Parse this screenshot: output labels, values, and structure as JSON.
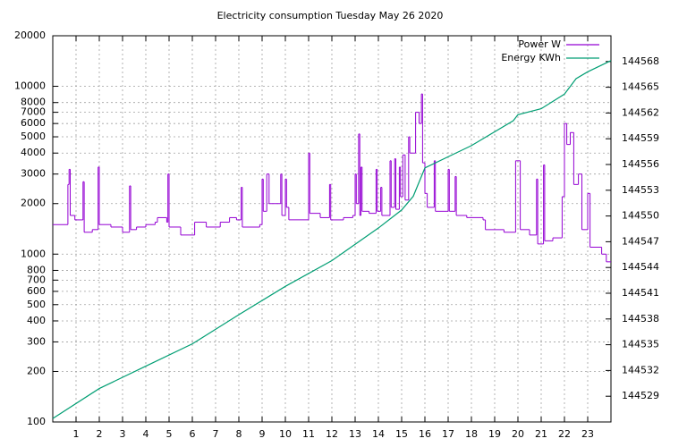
{
  "chart_data": {
    "type": "line",
    "title": "Electricity consumption Tuesday May 26 2020",
    "xlim": [
      0,
      24
    ],
    "xticks": [
      1,
      2,
      3,
      4,
      5,
      6,
      7,
      8,
      9,
      10,
      11,
      12,
      13,
      14,
      15,
      16,
      17,
      18,
      19,
      20,
      21,
      22,
      23
    ],
    "yscale": "log",
    "ylim": [
      100,
      20000
    ],
    "yticks": [
      100,
      200,
      300,
      400,
      500,
      600,
      700,
      800,
      1000,
      2000,
      3000,
      4000,
      5000,
      6000,
      7000,
      8000,
      10000,
      20000
    ],
    "y2lim": [
      144526,
      144571
    ],
    "y2ticks": [
      144529,
      144532,
      144535,
      144538,
      144541,
      144544,
      144547,
      144550,
      144553,
      144556,
      144559,
      144562,
      144565,
      144568
    ],
    "grid": true,
    "legend": "top-right",
    "series": [
      {
        "name": "Power W",
        "color": "#9400d3",
        "step": true,
        "x": [
          0,
          0.65,
          0.7,
          0.75,
          0.95,
          1.3,
          1.35,
          1.7,
          1.95,
          2.0,
          2.5,
          3.0,
          3.3,
          3.35,
          3.6,
          4.0,
          4.4,
          4.5,
          4.9,
          4.95,
          5.0,
          5.5,
          6.1,
          6.6,
          7.2,
          7.6,
          7.9,
          8.1,
          8.15,
          8.9,
          9.0,
          9.05,
          9.2,
          9.3,
          9.8,
          9.85,
          10.0,
          10.05,
          10.15,
          11.0,
          11.05,
          11.5,
          11.9,
          11.95,
          12.5,
          12.9,
          13.0,
          13.05,
          13.15,
          13.2,
          13.25,
          13.3,
          13.6,
          13.9,
          13.95,
          14.1,
          14.15,
          14.5,
          14.55,
          14.7,
          14.75,
          14.9,
          14.95,
          15.05,
          15.15,
          15.3,
          15.35,
          15.6,
          15.75,
          15.85,
          15.9,
          16.0,
          16.1,
          16.4,
          16.45,
          17.0,
          17.05,
          17.3,
          17.35,
          17.8,
          18.5,
          18.6,
          19.4,
          19.9,
          20.1,
          20.5,
          20.8,
          20.85,
          21.1,
          21.15,
          21.5,
          21.9,
          22.0,
          22.1,
          22.25,
          22.4,
          22.6,
          22.75,
          23.0,
          23.1,
          23.6,
          23.8,
          24
        ],
        "values": [
          1500,
          2600,
          3200,
          1700,
          1600,
          2700,
          1350,
          1400,
          3300,
          1500,
          1450,
          1350,
          2550,
          1400,
          1450,
          1500,
          1550,
          1650,
          1550,
          3000,
          1450,
          1300,
          1550,
          1450,
          1550,
          1650,
          1600,
          2500,
          1450,
          1500,
          2800,
          1800,
          3000,
          2000,
          3000,
          1700,
          2800,
          1900,
          1600,
          4000,
          1750,
          1650,
          2600,
          1600,
          1650,
          1700,
          3000,
          2000,
          5200,
          1700,
          3300,
          1800,
          1750,
          3200,
          1800,
          2500,
          1700,
          3600,
          1900,
          3700,
          1850,
          3300,
          2200,
          3900,
          2100,
          5000,
          4000,
          7000,
          6000,
          9000,
          3500,
          2300,
          1900,
          3600,
          1800,
          3200,
          1800,
          2900,
          1700,
          1650,
          1600,
          1400,
          1350,
          3600,
          1400,
          1300,
          2800,
          1150,
          3400,
          1200,
          1250,
          2200,
          6000,
          4500,
          5300,
          2600,
          3000,
          1400,
          2300,
          1100,
          1000,
          900,
          900
        ]
      },
      {
        "name": "Energy KWh",
        "color": "#009e73",
        "axis": "y2",
        "x": [
          0,
          2,
          4,
          6,
          8,
          10,
          12,
          14,
          15,
          15.5,
          16,
          18,
          19.8,
          20,
          21,
          22,
          22.5,
          23,
          24
        ],
        "values": [
          144526.4,
          144529.9,
          144532.5,
          144535.1,
          144538.5,
          144541.8,
          144544.8,
          144548.6,
          144550.7,
          144552.3,
          144555.6,
          144558.2,
          144561.1,
          144561.8,
          144562.5,
          144564.2,
          144566,
          144566.8,
          144568.1
        ]
      }
    ]
  }
}
